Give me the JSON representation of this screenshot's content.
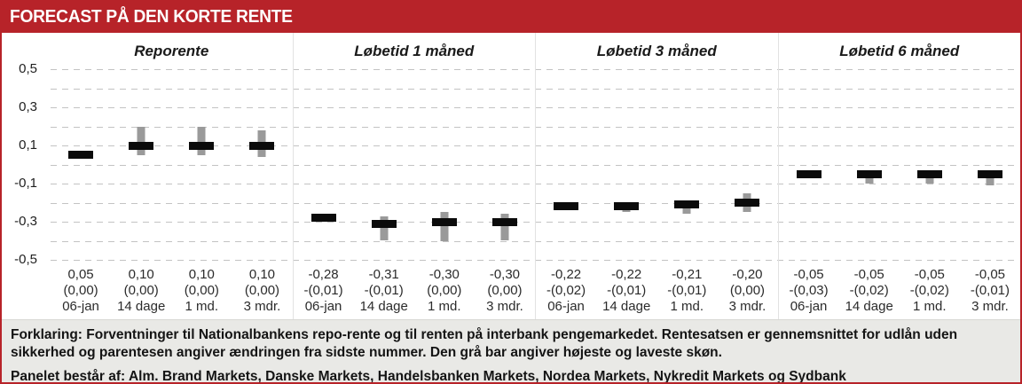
{
  "header": {
    "title": "FORECAST PÅ DEN KORTE RENTE"
  },
  "colors": {
    "accent_red": "#b72329",
    "bar_black": "#0b0b0b",
    "range_gray": "#9a9a9a",
    "footer_bg": "#e9e9e6",
    "gridline_gray": "#c3c3c3",
    "divider_gray": "#e2e2e2"
  },
  "chart_data": {
    "type": "bar",
    "subtype": "forecast-range-bars",
    "ylim": [
      -0.55,
      0.55
    ],
    "grid": "dashed horizontal, step 0.1 from 0.5 to -0.5",
    "y_axis": {
      "ticks": [
        {
          "label": "0,5",
          "value": 0.5
        },
        {
          "label": "0,3",
          "value": 0.3
        },
        {
          "label": "0,1",
          "value": 0.1
        },
        {
          "label": "-0,1",
          "value": -0.1
        },
        {
          "label": "-0,3",
          "value": -0.3
        },
        {
          "label": "-0,5",
          "value": -0.5
        }
      ],
      "gridline_values": [
        0.5,
        0.4,
        0.3,
        0.2,
        0.1,
        0.0,
        -0.1,
        -0.2,
        -0.3,
        -0.4,
        -0.5
      ]
    },
    "panels": [
      {
        "title": "Reporente",
        "points": [
          {
            "x_label": "06-jan",
            "value": 0.05,
            "value_label": "0,05",
            "change_label": "(0,00)",
            "range_hi": null,
            "range_lo": null
          },
          {
            "x_label": "14 dage",
            "value": 0.1,
            "value_label": "0,10",
            "change_label": "(0,00)",
            "range_hi": 0.2,
            "range_lo": 0.05
          },
          {
            "x_label": "1 md.",
            "value": 0.1,
            "value_label": "0,10",
            "change_label": "(0,00)",
            "range_hi": 0.2,
            "range_lo": 0.05
          },
          {
            "x_label": "3 mdr.",
            "value": 0.1,
            "value_label": "0,10",
            "change_label": "(0,00)",
            "range_hi": 0.18,
            "range_lo": 0.04
          }
        ]
      },
      {
        "title": "Løbetid 1 måned",
        "points": [
          {
            "x_label": "06-jan",
            "value": -0.28,
            "value_label": "-0,28",
            "change_label": "-(0,01)",
            "range_hi": null,
            "range_lo": null
          },
          {
            "x_label": "14 dage",
            "value": -0.31,
            "value_label": "-0,31",
            "change_label": "-(0,01)",
            "range_hi": -0.27,
            "range_lo": -0.4
          },
          {
            "x_label": "1 md.",
            "value": -0.3,
            "value_label": "-0,30",
            "change_label": "(0,00)",
            "range_hi": -0.25,
            "range_lo": -0.4
          },
          {
            "x_label": "3 mdr.",
            "value": -0.3,
            "value_label": "-0,30",
            "change_label": "(0,00)",
            "range_hi": -0.26,
            "range_lo": -0.4
          }
        ]
      },
      {
        "title": "Løbetid 3 måned",
        "points": [
          {
            "x_label": "06-jan",
            "value": -0.22,
            "value_label": "-0,22",
            "change_label": "-(0,02)",
            "range_hi": null,
            "range_lo": null
          },
          {
            "x_label": "14 dage",
            "value": -0.22,
            "value_label": "-0,22",
            "change_label": "-(0,01)",
            "range_hi": -0.2,
            "range_lo": -0.25
          },
          {
            "x_label": "1 md.",
            "value": -0.21,
            "value_label": "-0,21",
            "change_label": "-(0,01)",
            "range_hi": -0.19,
            "range_lo": -0.26
          },
          {
            "x_label": "3 mdr.",
            "value": -0.2,
            "value_label": "-0,20",
            "change_label": "(0,00)",
            "range_hi": -0.15,
            "range_lo": -0.25
          }
        ]
      },
      {
        "title": "Løbetid 6 måned",
        "points": [
          {
            "x_label": "06-jan",
            "value": -0.05,
            "value_label": "-0,05",
            "change_label": "-(0,03)",
            "range_hi": null,
            "range_lo": null
          },
          {
            "x_label": "14 dage",
            "value": -0.05,
            "value_label": "-0,05",
            "change_label": "-(0,02)",
            "range_hi": -0.05,
            "range_lo": -0.1
          },
          {
            "x_label": "1 md.",
            "value": -0.05,
            "value_label": "-0,05",
            "change_label": "-(0,02)",
            "range_hi": -0.05,
            "range_lo": -0.1
          },
          {
            "x_label": "3 mdr.",
            "value": -0.05,
            "value_label": "-0,05",
            "change_label": "-(0,01)",
            "range_hi": -0.03,
            "range_lo": -0.11
          }
        ]
      }
    ]
  },
  "footer": {
    "explanation": "Forklaring: Forventninger til Nationalbankens repo-rente og til renten på interbank pengemarkedet. Rentesatsen er gennemsnittet for udlån uden sikkerhed og parentesen angiver ændringen fra sidste nummer. Den grå bar angiver højeste og laveste skøn.",
    "panel_members": "Panelet består af: Alm. Brand Markets, Danske Markets, Handelsbanken Markets, Nordea Markets, Nykredit Markets og Sydbank"
  }
}
